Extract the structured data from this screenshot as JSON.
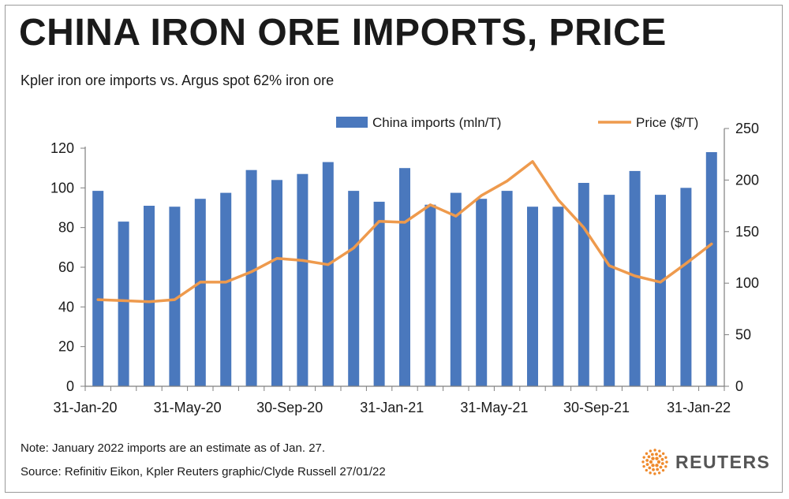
{
  "title": "CHINA IRON ORE IMPORTS, PRICE",
  "subtitle": "Kpler iron ore imports vs. Argus spot 62% iron ore",
  "note": "Note: January 2022 imports are an estimate as of Jan. 27.",
  "source": "Source: Refinitiv Eikon, Kpler    Reuters graphic/Clyde Russell 27/01/22",
  "brand": {
    "name": "REUTERS",
    "icon": "reuters-logo-icon"
  },
  "colors": {
    "bars": "#4a78bd",
    "line": "#ee9a4d",
    "axis": "#7f7f7f"
  },
  "chart_data": {
    "type": "bar+line",
    "legend": "top",
    "grid": false,
    "x_tick_labels": [
      "31-Jan-20",
      "31-May-20",
      "30-Sep-20",
      "31-Jan-21",
      "31-May-21",
      "30-Sep-21",
      "31-Jan-22"
    ],
    "y_left": {
      "range": [
        0,
        120
      ],
      "ticks": [
        "0",
        "20",
        "40",
        "60",
        "80",
        "100",
        "120"
      ]
    },
    "y_right": {
      "range": [
        0,
        250
      ],
      "ticks": [
        "0",
        "50",
        "100",
        "150",
        "200",
        "250"
      ]
    },
    "series": [
      {
        "name": "China imports (mln/T)",
        "type": "bar",
        "axis": "left",
        "values": [
          98.5,
          83,
          91,
          90.5,
          94.5,
          97.5,
          109,
          104,
          107,
          113,
          98.5,
          93,
          110,
          91.5,
          97.5,
          94.5,
          98.5,
          90.5,
          90.5,
          102.5,
          96.5,
          108.5,
          96.5,
          100,
          118
        ]
      },
      {
        "name": "Price ($/T)",
        "type": "line",
        "axis": "right",
        "values": [
          84,
          83,
          82,
          84,
          101,
          101,
          111,
          124,
          122,
          118,
          134,
          160,
          159,
          176,
          165,
          185,
          199,
          218,
          181,
          154,
          117,
          107,
          101,
          119,
          138
        ]
      }
    ]
  }
}
